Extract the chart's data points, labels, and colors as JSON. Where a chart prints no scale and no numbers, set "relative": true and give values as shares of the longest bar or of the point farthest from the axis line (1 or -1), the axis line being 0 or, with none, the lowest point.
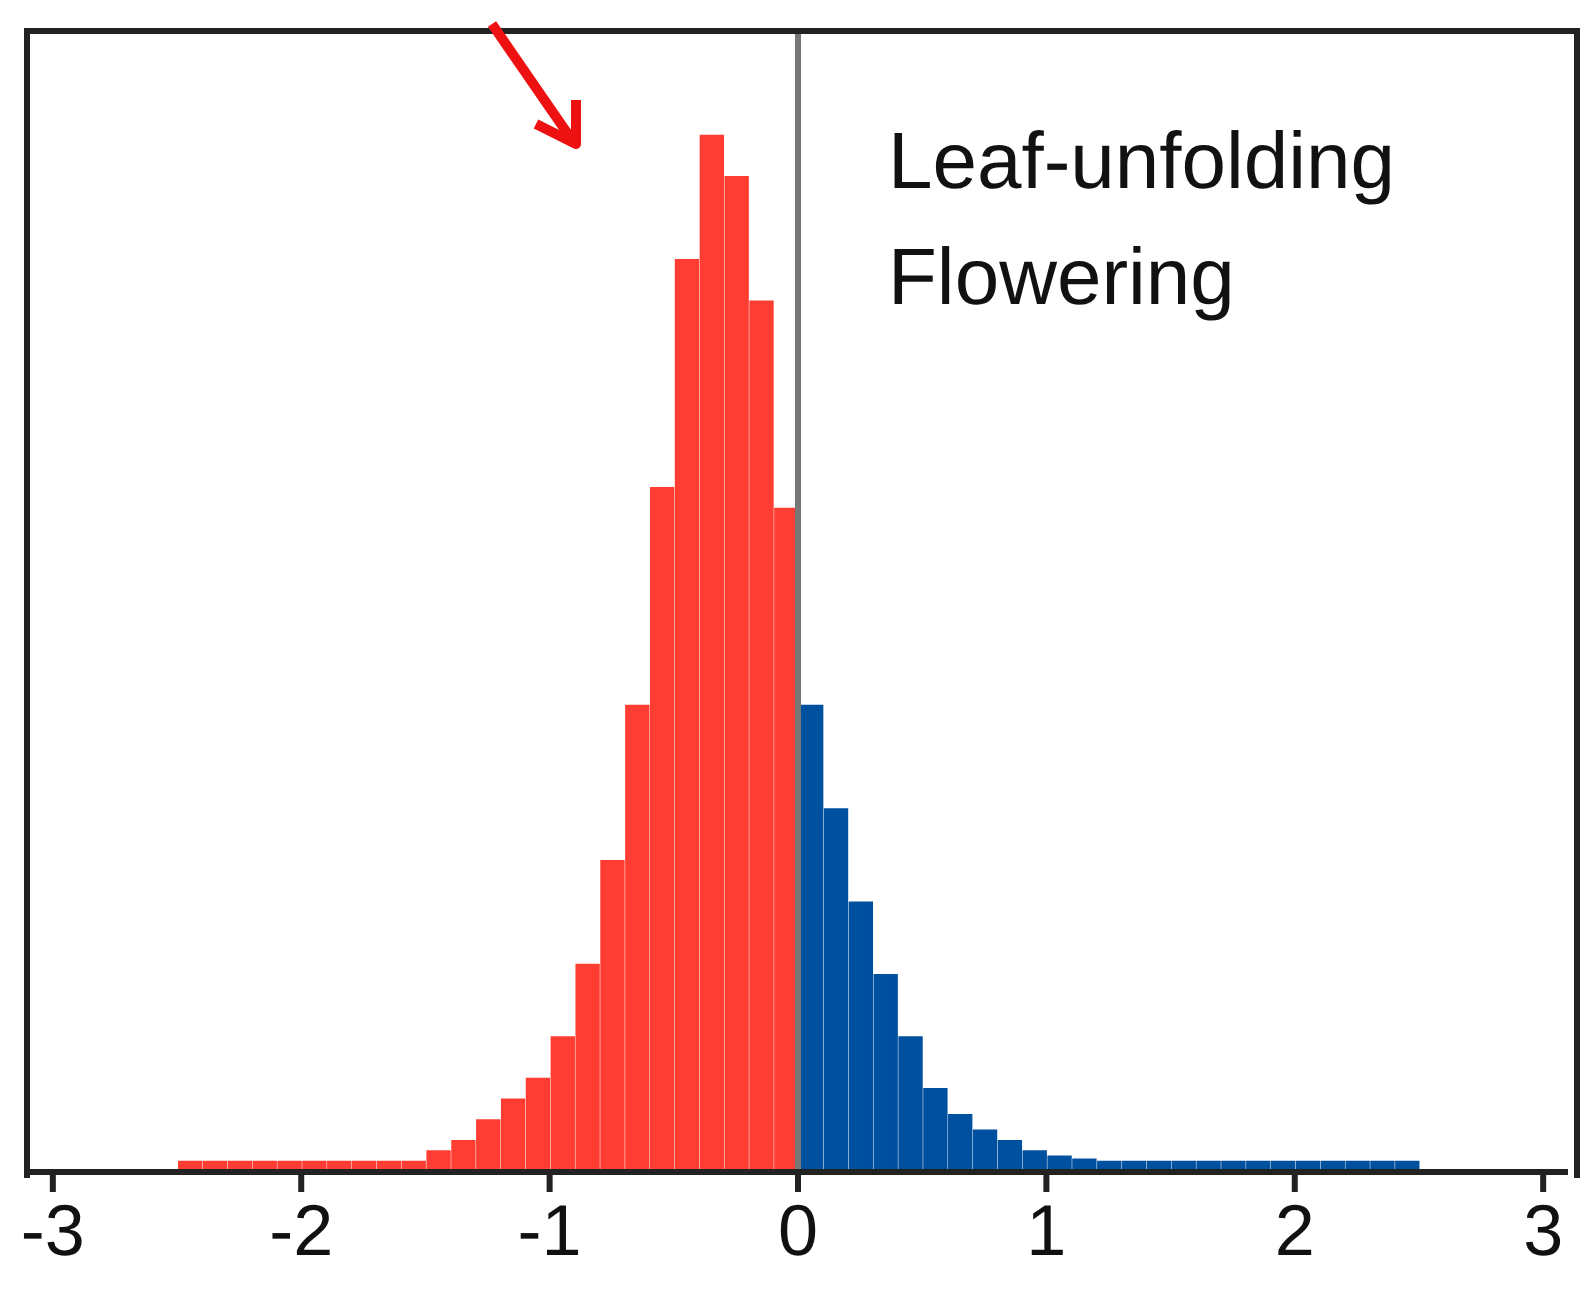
{
  "chart_data": {
    "type": "bar",
    "relative": true,
    "x": [
      -2.45,
      -2.35,
      -2.25,
      -2.15,
      -2.05,
      -1.95,
      -1.85,
      -1.75,
      -1.65,
      -1.55,
      -1.45,
      -1.35,
      -1.25,
      -1.15,
      -1.05,
      -0.95,
      -0.85,
      -0.75,
      -0.65,
      -0.55,
      -0.45,
      -0.35,
      -0.25,
      -0.15,
      -0.05,
      0.05,
      0.15,
      0.25,
      0.35,
      0.45,
      0.55,
      0.65,
      0.75,
      0.85,
      0.95,
      1.05,
      1.15,
      1.25,
      1.35,
      1.45,
      1.55,
      1.65,
      1.75,
      1.85,
      1.95,
      2.05,
      2.15,
      2.25,
      2.35,
      2.45
    ],
    "values": [
      0.01,
      0.01,
      0.01,
      0.01,
      0.01,
      0.01,
      0.01,
      0.01,
      0.01,
      0.01,
      0.02,
      0.03,
      0.05,
      0.07,
      0.09,
      0.13,
      0.2,
      0.3,
      0.45,
      0.66,
      0.88,
      1.0,
      0.96,
      0.84,
      0.64,
      0.45,
      0.35,
      0.26,
      0.19,
      0.13,
      0.08,
      0.055,
      0.04,
      0.03,
      0.02,
      0.015,
      0.012,
      0.01,
      0.01,
      0.01,
      0.01,
      0.01,
      0.01,
      0.01,
      0.01,
      0.01,
      0.01,
      0.01,
      0.01,
      0.01
    ],
    "colors": [
      "#ff3d33",
      "#ff3d33",
      "#ff3d33",
      "#ff3d33",
      "#ff3d33",
      "#ff3d33",
      "#ff3d33",
      "#ff3d33",
      "#ff3d33",
      "#ff3d33",
      "#ff3d33",
      "#ff3d33",
      "#ff3d33",
      "#ff3d33",
      "#ff3d33",
      "#ff3d33",
      "#ff3d33",
      "#ff3d33",
      "#ff3d33",
      "#ff3d33",
      "#ff3d33",
      "#ff3d33",
      "#ff3d33",
      "#ff3d33",
      "#ff3d33",
      "#0050a0",
      "#0050a0",
      "#0050a0",
      "#0050a0",
      "#0050a0",
      "#0050a0",
      "#0050a0",
      "#0050a0",
      "#0050a0",
      "#0050a0",
      "#0050a0",
      "#0050a0",
      "#0050a0",
      "#0050a0",
      "#0050a0",
      "#0050a0",
      "#0050a0",
      "#0050a0",
      "#0050a0",
      "#0050a0",
      "#0050a0",
      "#0050a0",
      "#0050a0",
      "#0050a0",
      "#0050a0"
    ],
    "xlim": [
      -3.1,
      3.1
    ],
    "xticks": [
      -3,
      -2,
      -1,
      0,
      1,
      2,
      3
    ],
    "ref_lines": [
      {
        "axis": "x",
        "value": 0,
        "color": "#777777"
      }
    ],
    "annotations": [
      "Leaf-unfolding",
      "Flowering"
    ],
    "grid": false
  }
}
